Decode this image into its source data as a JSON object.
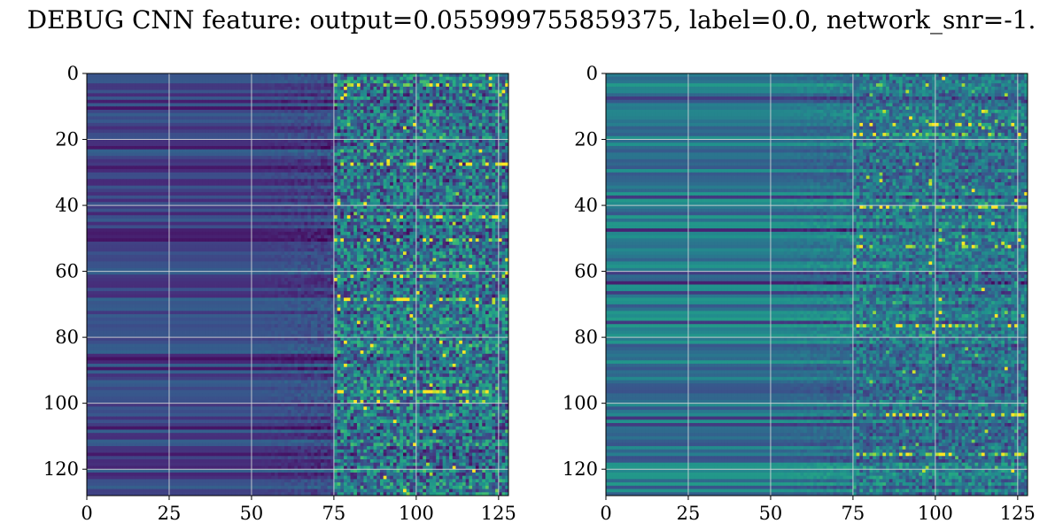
{
  "figure": {
    "title": "DEBUG CNN feature: output=0.055999755859375, label=0.0, network_snr=-1."
  },
  "chart_data": [
    {
      "type": "heatmap",
      "colormap": "viridis",
      "grid": true,
      "shape": [
        128,
        128
      ],
      "xlim": [
        0,
        128
      ],
      "ylim": [
        128,
        0
      ],
      "xticks": [
        0,
        25,
        50,
        75,
        100,
        125
      ],
      "xtick_labels": [
        "0",
        "25",
        "50",
        "75",
        "100",
        "125"
      ],
      "yticks": [
        0,
        20,
        40,
        60,
        80,
        100,
        120
      ],
      "ytick_labels": [
        "0",
        "20",
        "40",
        "60",
        "80",
        "100",
        "120"
      ],
      "row_base_range": [
        0.12,
        0.32
      ],
      "column_transition": 75,
      "noise_level_after_transition": 0.55,
      "hot_rows": [
        3,
        27,
        43,
        50,
        61,
        68,
        96,
        99
      ]
    },
    {
      "type": "heatmap",
      "colormap": "viridis",
      "grid": true,
      "shape": [
        128,
        128
      ],
      "xlim": [
        0,
        128
      ],
      "ylim": [
        128,
        0
      ],
      "xticks": [
        0,
        25,
        50,
        75,
        100,
        125
      ],
      "xtick_labels": [
        "0",
        "25",
        "50",
        "75",
        "100",
        "125"
      ],
      "yticks": [
        0,
        20,
        40,
        60,
        80,
        100,
        120
      ],
      "ytick_labels": [
        "0",
        "20",
        "40",
        "60",
        "80",
        "100",
        "120"
      ],
      "row_base_range": [
        0.25,
        0.55
      ],
      "column_transition": 75,
      "noise_level_after_transition": 0.35,
      "hot_rows": [
        15,
        18,
        40,
        52,
        76,
        103,
        115
      ]
    }
  ]
}
